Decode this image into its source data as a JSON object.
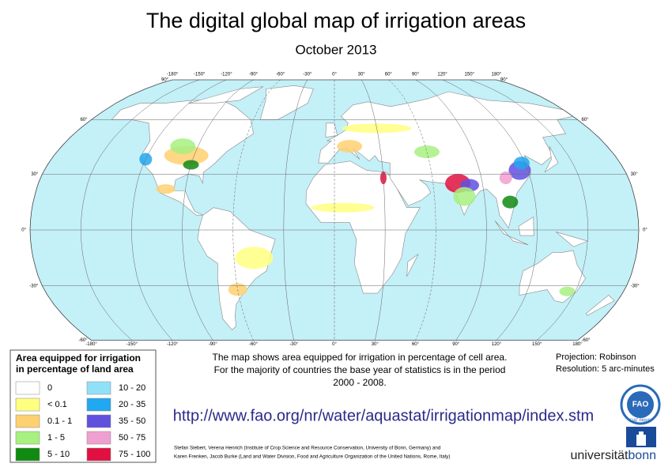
{
  "header": {
    "title": "The digital global map of irrigation areas",
    "subtitle": "October 2013"
  },
  "map": {
    "lon_labels_top": [
      "-180°",
      "-150°",
      "-120°",
      "-90°",
      "-60°",
      "-30°",
      "0°",
      "30°",
      "60°",
      "90°",
      "120°",
      "150°",
      "180°"
    ],
    "lon_labels_bottom": [
      "-180°",
      "-150°",
      "-120°",
      "-90°",
      "-60°",
      "-30°",
      "0°",
      "30°",
      "60°",
      "90°",
      "120°",
      "150°",
      "180°"
    ],
    "lat_labels_left": [
      "90°",
      "60°",
      "30°",
      "0°",
      "-30°",
      "-60°"
    ],
    "lat_labels_right": [
      "90°",
      "60°",
      "30°",
      "0°",
      "-30°",
      "-60°"
    ]
  },
  "legend": {
    "title_lines": [
      "Area equipped for irrigation",
      "in percentage of land area"
    ],
    "items": [
      {
        "label": "0",
        "color": "#ffffff"
      },
      {
        "label": "< 0.1",
        "color": "#ffff80"
      },
      {
        "label": "0.1 - 1",
        "color": "#ffd070"
      },
      {
        "label": "1 - 5",
        "color": "#a8f080"
      },
      {
        "label": "5 - 10",
        "color": "#108a10"
      },
      {
        "label": "10 - 20",
        "color": "#90e0f8"
      },
      {
        "label": "20 - 35",
        "color": "#20a8f0"
      },
      {
        "label": "35 - 50",
        "color": "#6050e0"
      },
      {
        "label": "50 - 75",
        "color": "#f0a0d0"
      },
      {
        "label": "75 - 100",
        "color": "#e01040"
      }
    ]
  },
  "description": [
    "The map shows area equipped for irrigation in percentage of cell area.",
    "For the majority of countries the base year of statistics is in the period",
    "2000 - 2008."
  ],
  "projection": [
    "Projection: Robinson",
    "Resolution: 5 arc-minutes"
  ],
  "url": "http://www.fao.org/nr/water/aquastat/irrigationmap/index.stm",
  "credits": [
    "Stefan Siebert, Verena Henrich (Institute of Crop Science and Resource Conservation, University of Bonn, Germany) and",
    "Karen Frenken, Jacob Burke (Land and Water Division, Food and Agriculture Organization of the United Nations, Rome, Italy)"
  ],
  "logos": {
    "fao": "FAO",
    "fao_motto": "FIAT PANIS",
    "uni_part1": "universität",
    "uni_part2": "bonn"
  }
}
